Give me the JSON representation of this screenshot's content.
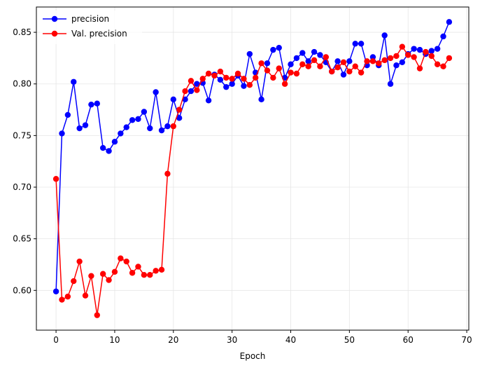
{
  "chart_data": {
    "type": "line",
    "title": "",
    "xlabel": "Epoch",
    "ylabel": "",
    "xlim": [
      -3.35,
      70.35
    ],
    "ylim": [
      0.5615,
      0.8745
    ],
    "xticks": [
      0,
      10,
      20,
      30,
      40,
      50,
      60,
      70
    ],
    "yticks": [
      0.6,
      0.65,
      0.7,
      0.75,
      0.8,
      0.85
    ],
    "xtick_labels": [
      "0",
      "10",
      "20",
      "30",
      "40",
      "50",
      "60",
      "70"
    ],
    "ytick_labels": [
      "0.60",
      "0.65",
      "0.70",
      "0.75",
      "0.80",
      "0.85"
    ],
    "grid": true,
    "legend_position": "top-left",
    "x": [
      0,
      1,
      2,
      3,
      4,
      5,
      6,
      7,
      8,
      9,
      10,
      11,
      12,
      13,
      14,
      15,
      16,
      17,
      18,
      19,
      20,
      21,
      22,
      23,
      24,
      25,
      26,
      27,
      28,
      29,
      30,
      31,
      32,
      33,
      34,
      35,
      36,
      37,
      38,
      39,
      40,
      41,
      42,
      43,
      44,
      45,
      46,
      47,
      48,
      49,
      50,
      51,
      52,
      53,
      54,
      55,
      56,
      57,
      58,
      59,
      60,
      61,
      62,
      63,
      64,
      65,
      66,
      67
    ],
    "series": [
      {
        "name": "precision",
        "color": "#0000ff",
        "values": [
          0.599,
          0.752,
          0.77,
          0.802,
          0.757,
          0.76,
          0.78,
          0.781,
          0.738,
          0.735,
          0.744,
          0.752,
          0.758,
          0.765,
          0.766,
          0.773,
          0.757,
          0.792,
          0.755,
          0.759,
          0.785,
          0.767,
          0.785,
          0.793,
          0.8,
          0.801,
          0.784,
          0.809,
          0.804,
          0.797,
          0.8,
          0.808,
          0.798,
          0.829,
          0.811,
          0.785,
          0.82,
          0.833,
          0.835,
          0.806,
          0.819,
          0.825,
          0.83,
          0.822,
          0.831,
          0.828,
          0.821,
          0.812,
          0.822,
          0.809,
          0.822,
          0.839,
          0.839,
          0.818,
          0.826,
          0.818,
          0.847,
          0.8,
          0.818,
          0.821,
          0.829,
          0.834,
          0.833,
          0.829,
          0.832,
          0.834,
          0.846,
          0.86
        ]
      },
      {
        "name": "Val. precision",
        "color": "#ff0000",
        "values": [
          0.708,
          0.591,
          0.594,
          0.609,
          0.628,
          0.595,
          0.614,
          0.576,
          0.616,
          0.61,
          0.618,
          0.631,
          0.628,
          0.617,
          0.623,
          0.615,
          0.615,
          0.619,
          0.62,
          0.713,
          0.759,
          0.775,
          0.793,
          0.803,
          0.794,
          0.805,
          0.81,
          0.808,
          0.812,
          0.806,
          0.805,
          0.81,
          0.805,
          0.799,
          0.806,
          0.82,
          0.813,
          0.806,
          0.815,
          0.8,
          0.811,
          0.81,
          0.819,
          0.817,
          0.823,
          0.817,
          0.826,
          0.812,
          0.816,
          0.821,
          0.812,
          0.817,
          0.811,
          0.822,
          0.822,
          0.82,
          0.823,
          0.825,
          0.827,
          0.836,
          0.828,
          0.826,
          0.815,
          0.831,
          0.827,
          0.819,
          0.817,
          0.825
        ]
      }
    ]
  }
}
